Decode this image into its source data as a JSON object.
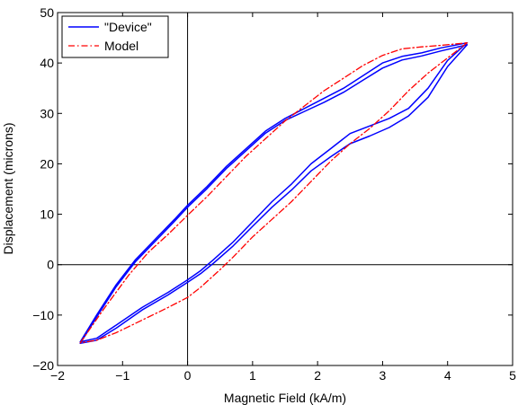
{
  "chart_data": {
    "type": "line",
    "xlabel": "Magnetic Field (kA/m)",
    "ylabel": "Displacement (microns)",
    "xlim": [
      -2,
      5
    ],
    "ylim": [
      -20,
      50
    ],
    "xticks": [
      -2,
      -1,
      0,
      1,
      2,
      3,
      4,
      5
    ],
    "yticks": [
      -20,
      -10,
      0,
      10,
      20,
      30,
      40,
      50
    ],
    "xtick_labels": [
      "−2",
      "−1",
      "0",
      "1",
      "2",
      "3",
      "4",
      "5"
    ],
    "ytick_labels": [
      "−20",
      "−10",
      "0",
      "10",
      "20",
      "30",
      "40",
      "50"
    ],
    "reference_lines": {
      "x": 0,
      "y": 0
    },
    "grid": false,
    "legend_position": "top-left",
    "series": [
      {
        "name": "\"Device\"",
        "color": "#0000ff",
        "style": "solid",
        "curves": [
          [
            [
              -1.65,
              -15.3
            ],
            [
              -1.4,
              -10
            ],
            [
              -1.1,
              -4
            ],
            [
              -0.8,
              1
            ],
            [
              -0.5,
              5
            ],
            [
              -0.2,
              9
            ],
            [
              0,
              11.8
            ],
            [
              0.3,
              15.5
            ],
            [
              0.6,
              19.5
            ],
            [
              0.9,
              23
            ],
            [
              1.2,
              26.5
            ],
            [
              1.5,
              29
            ],
            [
              1.8,
              31
            ],
            [
              2.1,
              33
            ],
            [
              2.4,
              35
            ],
            [
              2.7,
              37.5
            ],
            [
              3,
              40
            ],
            [
              3.3,
              41.3
            ],
            [
              3.6,
              42
            ],
            [
              3.9,
              43
            ],
            [
              4.3,
              44
            ]
          ],
          [
            [
              -1.65,
              -15.6
            ],
            [
              -1.4,
              -10.4
            ],
            [
              -1.1,
              -4.4
            ],
            [
              -0.8,
              0.6
            ],
            [
              -0.5,
              4.6
            ],
            [
              -0.2,
              8.6
            ],
            [
              0,
              11.4
            ],
            [
              0.3,
              15.1
            ],
            [
              0.6,
              19.1
            ],
            [
              0.9,
              22.6
            ],
            [
              1.2,
              26.1
            ],
            [
              1.5,
              28.6
            ],
            [
              1.8,
              30.4
            ],
            [
              2.1,
              32.2
            ],
            [
              2.4,
              34.2
            ],
            [
              2.7,
              36.6
            ],
            [
              3,
              39
            ],
            [
              3.3,
              40.6
            ],
            [
              3.6,
              41.4
            ],
            [
              3.9,
              42.4
            ],
            [
              4.3,
              43.6
            ]
          ],
          [
            [
              4.3,
              44
            ],
            [
              4,
              40.5
            ],
            [
              3.7,
              35
            ],
            [
              3.4,
              31
            ],
            [
              3.1,
              29
            ],
            [
              2.8,
              27.5
            ],
            [
              2.5,
              26
            ],
            [
              2.2,
              23
            ],
            [
              1.9,
              20
            ],
            [
              1.6,
              16
            ],
            [
              1.3,
              12.5
            ],
            [
              1,
              8.5
            ],
            [
              0.7,
              4.5
            ],
            [
              0.4,
              1
            ],
            [
              0.2,
              -1.2
            ],
            [
              0,
              -3
            ],
            [
              -0.3,
              -5.5
            ],
            [
              -0.7,
              -8.5
            ],
            [
              -1.1,
              -12
            ],
            [
              -1.4,
              -14.6
            ],
            [
              -1.65,
              -15.3
            ]
          ],
          [
            [
              4.3,
              43.6
            ],
            [
              4,
              39.3
            ],
            [
              3.7,
              33.2
            ],
            [
              3.4,
              29.5
            ],
            [
              3.1,
              27.2
            ],
            [
              2.8,
              25.5
            ],
            [
              2.5,
              24
            ],
            [
              2.2,
              21.4
            ],
            [
              1.9,
              18.6
            ],
            [
              1.6,
              14.8
            ],
            [
              1.3,
              11.4
            ],
            [
              1,
              7.6
            ],
            [
              0.7,
              3.7
            ],
            [
              0.4,
              0.3
            ],
            [
              0.2,
              -1.8
            ],
            [
              0,
              -3.5
            ],
            [
              -0.3,
              -6
            ],
            [
              -0.7,
              -9
            ],
            [
              -1.1,
              -12.6
            ],
            [
              -1.4,
              -15
            ],
            [
              -1.65,
              -15.6
            ]
          ]
        ]
      },
      {
        "name": "Model",
        "color": "#ff0000",
        "style": "dashdot",
        "curves": [
          [
            [
              -1.65,
              -15.5
            ],
            [
              -1.3,
              -9
            ],
            [
              -0.9,
              -2
            ],
            [
              -0.6,
              2.5
            ],
            [
              -0.3,
              6
            ],
            [
              0,
              9.8
            ],
            [
              0.3,
              13.5
            ],
            [
              0.6,
              17.5
            ],
            [
              0.9,
              21.5
            ],
            [
              1.2,
              25
            ],
            [
              1.5,
              28.5
            ],
            [
              1.8,
              31.5
            ],
            [
              2.1,
              34.5
            ],
            [
              2.4,
              37
            ],
            [
              2.7,
              39.5
            ],
            [
              3,
              41.5
            ],
            [
              3.3,
              42.8
            ],
            [
              3.6,
              43.2
            ],
            [
              3.9,
              43.5
            ],
            [
              4.3,
              44
            ]
          ],
          [
            [
              4.3,
              44
            ],
            [
              4,
              41
            ],
            [
              3.7,
              38
            ],
            [
              3.4,
              34.5
            ],
            [
              3.1,
              30.5
            ],
            [
              2.8,
              27
            ],
            [
              2.5,
              24
            ],
            [
              2.2,
              20.5
            ],
            [
              1.9,
              16.5
            ],
            [
              1.6,
              12.5
            ],
            [
              1.3,
              9
            ],
            [
              1,
              5.5
            ],
            [
              0.7,
              1.5
            ],
            [
              0.5,
              -1
            ],
            [
              0.2,
              -4.5
            ],
            [
              0,
              -6.5
            ],
            [
              -0.3,
              -8.5
            ],
            [
              -0.7,
              -11
            ],
            [
              -1.1,
              -13.5
            ],
            [
              -1.4,
              -15
            ],
            [
              -1.65,
              -15.5
            ]
          ]
        ]
      }
    ]
  }
}
